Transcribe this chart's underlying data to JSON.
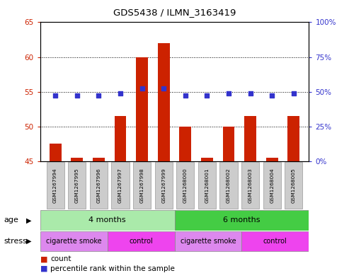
{
  "title": "GDS5438 / ILMN_3163419",
  "samples": [
    "GSM1267994",
    "GSM1267995",
    "GSM1267996",
    "GSM1267997",
    "GSM1267998",
    "GSM1267999",
    "GSM1268000",
    "GSM1268001",
    "GSM1268002",
    "GSM1268003",
    "GSM1268004",
    "GSM1268005"
  ],
  "counts": [
    47.5,
    45.5,
    45.5,
    51.5,
    60.0,
    62.0,
    50.0,
    45.5,
    50.0,
    51.5,
    45.5,
    51.5
  ],
  "percentiles_left": [
    54.5,
    54.5,
    54.5,
    54.8,
    55.5,
    55.5,
    54.5,
    54.5,
    54.8,
    54.8,
    54.5,
    54.8
  ],
  "ylim_left": [
    45,
    65
  ],
  "ylim_right": [
    0,
    100
  ],
  "yticks_left": [
    45,
    50,
    55,
    60,
    65
  ],
  "ytick_labels_left": [
    "45",
    "50",
    "55",
    "60",
    "65"
  ],
  "yticks_right": [
    0,
    25,
    50,
    75,
    100
  ],
  "ytick_labels_right": [
    "0%",
    "25%",
    "50%",
    "75%",
    "100%"
  ],
  "bar_color": "#cc2200",
  "dot_color": "#3333cc",
  "bar_width": 0.55,
  "age_groups": [
    {
      "label": "4 months",
      "start": 0,
      "end": 6,
      "color": "#aaeaaa"
    },
    {
      "label": "6 months",
      "start": 6,
      "end": 12,
      "color": "#44cc44"
    }
  ],
  "stress_groups": [
    {
      "label": "cigarette smoke",
      "start": 0,
      "end": 3,
      "color": "#dd88ee"
    },
    {
      "label": "control",
      "start": 3,
      "end": 6,
      "color": "#ee44ee"
    },
    {
      "label": "cigarette smoke",
      "start": 6,
      "end": 9,
      "color": "#dd88ee"
    },
    {
      "label": "control",
      "start": 9,
      "end": 12,
      "color": "#ee44ee"
    }
  ],
  "bg_color": "#ffffff",
  "tick_color_left": "#cc2200",
  "tick_color_right": "#3333cc",
  "xticklabel_bg": "#cccccc",
  "border_color": "#000000"
}
